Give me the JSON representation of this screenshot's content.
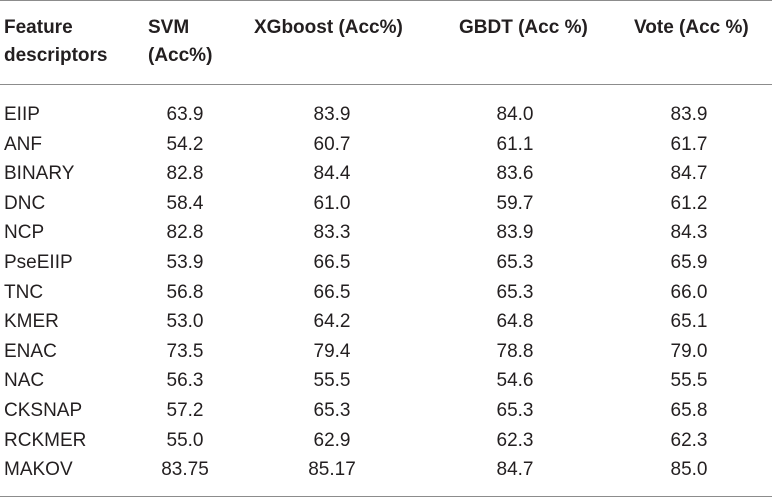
{
  "table": {
    "headers": {
      "feature_line1": "Feature",
      "feature_line2": "descriptors",
      "svm_line1": "SVM",
      "svm_line2": "(Acc%)",
      "xgboost": "XGboost (Acc%)",
      "gbdt": "GBDT (Acc %)",
      "vote": "Vote (Acc %)"
    },
    "rows": [
      {
        "name": "EIIP",
        "svm": "63.9",
        "xgboost": "83.9",
        "gbdt": "84.0",
        "vote": "83.9"
      },
      {
        "name": "ANF",
        "svm": "54.2",
        "xgboost": "60.7",
        "gbdt": "61.1",
        "vote": "61.7"
      },
      {
        "name": "BINARY",
        "svm": "82.8",
        "xgboost": "84.4",
        "gbdt": "83.6",
        "vote": "84.7"
      },
      {
        "name": "DNC",
        "svm": "58.4",
        "xgboost": "61.0",
        "gbdt": "59.7",
        "vote": "61.2"
      },
      {
        "name": "NCP",
        "svm": "82.8",
        "xgboost": "83.3",
        "gbdt": "83.9",
        "vote": "84.3"
      },
      {
        "name": "PseEIIP",
        "svm": "53.9",
        "xgboost": "66.5",
        "gbdt": "65.3",
        "vote": "65.9"
      },
      {
        "name": "TNC",
        "svm": "56.8",
        "xgboost": "66.5",
        "gbdt": "65.3",
        "vote": "66.0"
      },
      {
        "name": "KMER",
        "svm": "53.0",
        "xgboost": "64.2",
        "gbdt": "64.8",
        "vote": "65.1"
      },
      {
        "name": "ENAC",
        "svm": "73.5",
        "xgboost": "79.4",
        "gbdt": "78.8",
        "vote": "79.0"
      },
      {
        "name": "NAC",
        "svm": "56.3",
        "xgboost": "55.5",
        "gbdt": "54.6",
        "vote": "55.5"
      },
      {
        "name": "CKSNAP",
        "svm": "57.2",
        "xgboost": "65.3",
        "gbdt": "65.3",
        "vote": "65.8"
      },
      {
        "name": "RCKMER",
        "svm": "55.0",
        "xgboost": "62.9",
        "gbdt": "62.3",
        "vote": "62.3"
      },
      {
        "name": "MAKOV",
        "svm": "83.75",
        "xgboost": "85.17",
        "gbdt": "84.7",
        "vote": "85.0"
      }
    ]
  }
}
